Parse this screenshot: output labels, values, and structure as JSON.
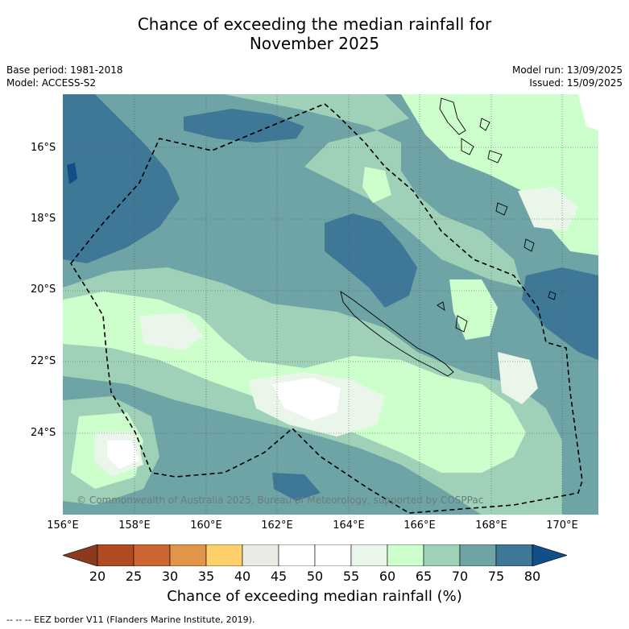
{
  "title_line1": "Chance of exceeding the median rainfall for",
  "title_line2": "November 2025",
  "meta_left": {
    "base_period": "Base period: 1981-2018",
    "model": "Model: ACCESS-S2"
  },
  "meta_right": {
    "model_run": "Model run: 13/09/2025",
    "issued": "Issued: 15/09/2025"
  },
  "axes": {
    "lat_ticks": [
      "16°S",
      "18°S",
      "20°S",
      "22°S",
      "24°S"
    ],
    "lon_ticks": [
      "156°E",
      "158°E",
      "160°E",
      "162°E",
      "164°E",
      "166°E",
      "168°E",
      "170°E"
    ]
  },
  "copyright": "© Commonwealth of Australia 2025, Bureau of Meteorology, supported by COSPPac",
  "colorbar": {
    "ticks": [
      "20",
      "25",
      "30",
      "35",
      "40",
      "45",
      "50",
      "55",
      "60",
      "65",
      "70",
      "75",
      "80"
    ],
    "colors": [
      "#8b3a1e",
      "#b04a22",
      "#cc6633",
      "#e09548",
      "#fdd06c",
      "#ebebe6",
      "#ffffff",
      "#ffffff",
      "#eaf6ea",
      "#ccffcc",
      "#9ed1b7",
      "#6ea4a6",
      "#3f7796",
      "#124e88"
    ],
    "title": "Chance of exceeding median rainfall (%)"
  },
  "footnote": "--  --  -- EEZ border V11 (Flanders Marine Institute, 2019)."
}
